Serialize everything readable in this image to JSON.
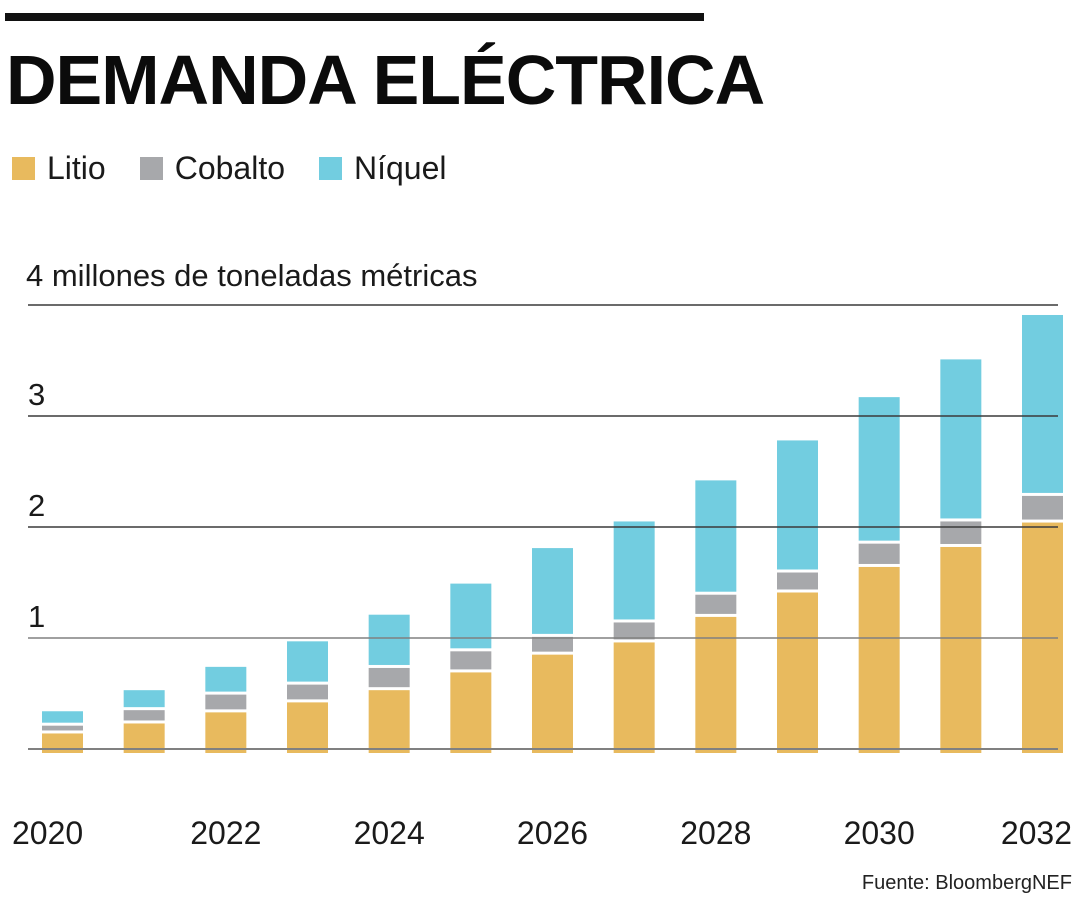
{
  "title": "DEMANDA ELÉCTRICA",
  "source": "Fuente: BloombergNEF",
  "colors": {
    "Litio": "#E8BA5E",
    "Cobalto": "#A7A8AB",
    "Níquel": "#72CDE0",
    "text": "#111111",
    "gridline_dark": "#3a3a3a",
    "gridline_light": "#808080"
  },
  "legend": [
    {
      "label": "Litio",
      "color": "#E8BA5E"
    },
    {
      "label": "Cobalto",
      "color": "#A7A8AB"
    },
    {
      "label": "Níquel",
      "color": "#72CDE0"
    }
  ],
  "chart_data": {
    "type": "bar",
    "stacked": true,
    "title": "DEMANDA ELÉCTRICA",
    "unit_label": "4 millones de toneladas métricas",
    "xlabel": "",
    "ylabel": "millones de toneladas métricas",
    "ylim": [
      0,
      4
    ],
    "yticks": [
      {
        "value": 4,
        "label": "4 millones de toneladas métricas"
      },
      {
        "value": 3,
        "label": "3"
      },
      {
        "value": 2,
        "label": "2"
      },
      {
        "value": 1,
        "label": "1"
      }
    ],
    "grid": true,
    "legend_position": "top-left",
    "categories": [
      "2020",
      "2021",
      "2022",
      "2023",
      "2024",
      "2025",
      "2026",
      "2027",
      "2028",
      "2029",
      "2030",
      "2031",
      "2032"
    ],
    "xtick_labels": [
      "2020",
      "2022",
      "2024",
      "2026",
      "2028",
      "2030",
      "2032"
    ],
    "series": [
      {
        "name": "Litio",
        "values": [
          0.14,
          0.23,
          0.33,
          0.42,
          0.53,
          0.69,
          0.85,
          0.96,
          1.19,
          1.41,
          1.64,
          1.82,
          2.04
        ]
      },
      {
        "name": "Cobalto",
        "values": [
          0.07,
          0.12,
          0.16,
          0.16,
          0.2,
          0.19,
          0.16,
          0.18,
          0.2,
          0.18,
          0.21,
          0.23,
          0.24
        ]
      },
      {
        "name": "Níquel",
        "values": [
          0.13,
          0.18,
          0.25,
          0.39,
          0.48,
          0.61,
          0.8,
          0.91,
          1.03,
          1.19,
          1.32,
          1.46,
          1.63
        ]
      }
    ],
    "source": "Fuente: BloombergNEF"
  }
}
